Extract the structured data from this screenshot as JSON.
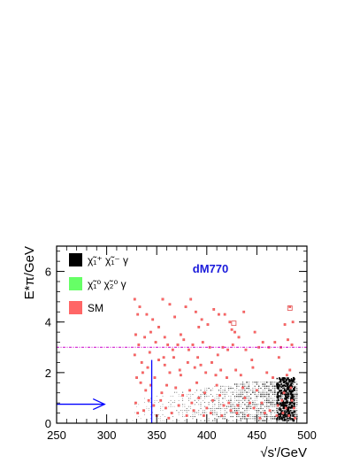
{
  "chart_data": {
    "type": "scatter",
    "title": "",
    "annotation": "dM770",
    "xlabel": "√s'/GeV",
    "ylabel": "E*π/GeV",
    "xlim": [
      250,
      500
    ],
    "ylim": [
      0,
      7
    ],
    "x_ticks": [
      250,
      300,
      350,
      400,
      450,
      500
    ],
    "y_ticks": [
      0,
      2,
      4,
      6
    ],
    "grid": false,
    "legend_placement": "top-left",
    "legend": [
      {
        "label": "χ̃₁⁺ χ̃₁⁻ γ",
        "color": "#000000"
      },
      {
        "label": "χ̃₁⁰ χ̃₂⁰ γ",
        "color": "#66ff66"
      },
      {
        "label": "SM",
        "color": "#ff6666"
      }
    ],
    "cut_lines": {
      "horizontal_y": 3.0,
      "horizontal_color": "#cc00cc",
      "vertical_x": 345,
      "vertical_ymax": 2.5,
      "vertical_color": "#0000ff",
      "arrow": {
        "x_from": 250,
        "x_to": 282,
        "y": 0.75,
        "color": "#0000ff"
      }
    },
    "signal_region": {
      "x_range": [
        326,
        490
      ],
      "y_range": [
        0.1,
        1.7
      ],
      "color": "#000000"
    },
    "sm_points": [
      [
        328,
        4.9
      ],
      [
        333,
        4.6
      ],
      [
        340,
        4.3
      ],
      [
        346,
        4.1
      ],
      [
        352,
        3.8
      ],
      [
        356,
        4.9
      ],
      [
        363,
        4.7
      ],
      [
        368,
        4.2
      ],
      [
        374,
        3.5
      ],
      [
        379,
        4.6
      ],
      [
        384,
        4.9
      ],
      [
        389,
        4.4
      ],
      [
        395,
        4.1
      ],
      [
        401,
        3.9
      ],
      [
        407,
        4.5
      ],
      [
        412,
        4.3
      ],
      [
        418,
        4.3
      ],
      [
        423,
        4.0
      ],
      [
        428,
        3.6
      ],
      [
        432,
        3.4
      ],
      [
        437,
        4.4
      ],
      [
        448,
        3.6
      ],
      [
        456,
        3.2
      ],
      [
        468,
        3.2
      ],
      [
        478,
        3.9
      ],
      [
        483,
        4.6
      ],
      [
        486,
        4.0
      ],
      [
        332,
        3.1
      ],
      [
        338,
        3.4
      ],
      [
        343,
        2.8
      ],
      [
        349,
        3.2
      ],
      [
        357,
        2.6
      ],
      [
        361,
        3.1
      ],
      [
        366,
        2.9
      ],
      [
        371,
        3.1
      ],
      [
        377,
        3.3
      ],
      [
        382,
        2.9
      ],
      [
        386,
        3.1
      ],
      [
        391,
        2.6
      ],
      [
        396,
        3.2
      ],
      [
        403,
        3.0
      ],
      [
        411,
        2.7
      ],
      [
        416,
        3.0
      ],
      [
        421,
        2.9
      ],
      [
        426,
        3.1
      ],
      [
        439,
        2.9
      ],
      [
        452,
        3.0
      ],
      [
        462,
        3.0
      ],
      [
        474,
        3.0
      ],
      [
        481,
        3.3
      ],
      [
        485,
        3.1
      ],
      [
        335,
        2.4
      ],
      [
        341,
        2.2
      ],
      [
        352,
        2.5
      ],
      [
        358,
        2.3
      ],
      [
        363,
        2.0
      ],
      [
        367,
        2.6
      ],
      [
        373,
        2.1
      ],
      [
        381,
        2.4
      ],
      [
        388,
        2.2
      ],
      [
        394,
        2.3
      ],
      [
        399,
        2.0
      ],
      [
        405,
        2.4
      ],
      [
        409,
        1.9
      ],
      [
        414,
        2.1
      ],
      [
        420,
        1.8
      ],
      [
        429,
        2.1
      ],
      [
        434,
        1.9
      ],
      [
        446,
        2.2
      ],
      [
        460,
        2.0
      ],
      [
        466,
        1.8
      ],
      [
        480,
        1.9
      ],
      [
        484,
        1.4
      ],
      [
        330,
        1.8
      ],
      [
        334,
        1.6
      ],
      [
        339,
        1.3
      ],
      [
        344,
        1.5
      ],
      [
        355,
        1.2
      ],
      [
        360,
        1.5
      ],
      [
        369,
        1.4
      ],
      [
        376,
        1.1
      ],
      [
        383,
        1.3
      ],
      [
        392,
        1.0
      ],
      [
        398,
        1.2
      ],
      [
        406,
        0.9
      ],
      [
        413,
        1.1
      ],
      [
        422,
        0.8
      ],
      [
        431,
        0.7
      ],
      [
        438,
        1.0
      ],
      [
        447,
        0.6
      ],
      [
        455,
        0.8
      ],
      [
        463,
        0.5
      ],
      [
        471,
        0.7
      ],
      [
        476,
        0.4
      ],
      [
        487,
        0.6
      ],
      [
        329,
        0.8
      ],
      [
        337,
        0.5
      ],
      [
        342,
        0.9
      ],
      [
        350,
        0.3
      ],
      [
        359,
        0.6
      ],
      [
        365,
        0.4
      ],
      [
        372,
        0.7
      ],
      [
        380,
        0.3
      ],
      [
        387,
        0.5
      ],
      [
        397,
        0.3
      ],
      [
        404,
        0.4
      ],
      [
        415,
        0.3
      ],
      [
        424,
        0.5
      ],
      [
        441,
        0.3
      ],
      [
        453,
        0.2
      ],
      [
        470,
        0.3
      ],
      [
        488,
        0.2
      ],
      [
        331,
        0.4
      ],
      [
        347,
        0.7
      ],
      [
        354,
        0.9
      ],
      [
        362,
        0.2
      ],
      [
        385,
        0.8
      ],
      [
        400,
        0.6
      ],
      [
        417,
        0.7
      ],
      [
        430,
        0.4
      ],
      [
        443,
        0.8
      ],
      [
        458,
        0.4
      ],
      [
        475,
        0.9
      ],
      [
        479,
        0.6
      ],
      [
        482,
        0.3
      ],
      [
        336,
        2.0
      ],
      [
        348,
        1.8
      ],
      [
        374,
        1.9
      ],
      [
        390,
        1.6
      ],
      [
        410,
        1.5
      ],
      [
        436,
        1.4
      ],
      [
        450,
        1.3
      ],
      [
        477,
        1.2
      ],
      [
        485,
        0.9
      ],
      [
        328,
        2.7
      ],
      [
        344,
        3.6
      ],
      [
        358,
        3.4
      ],
      [
        392,
        3.8
      ],
      [
        425,
        3.7
      ],
      [
        445,
        2.5
      ],
      [
        472,
        2.6
      ],
      [
        329,
        3.5
      ],
      [
        331,
        4.3
      ],
      [
        483,
        2.1
      ]
    ]
  }
}
